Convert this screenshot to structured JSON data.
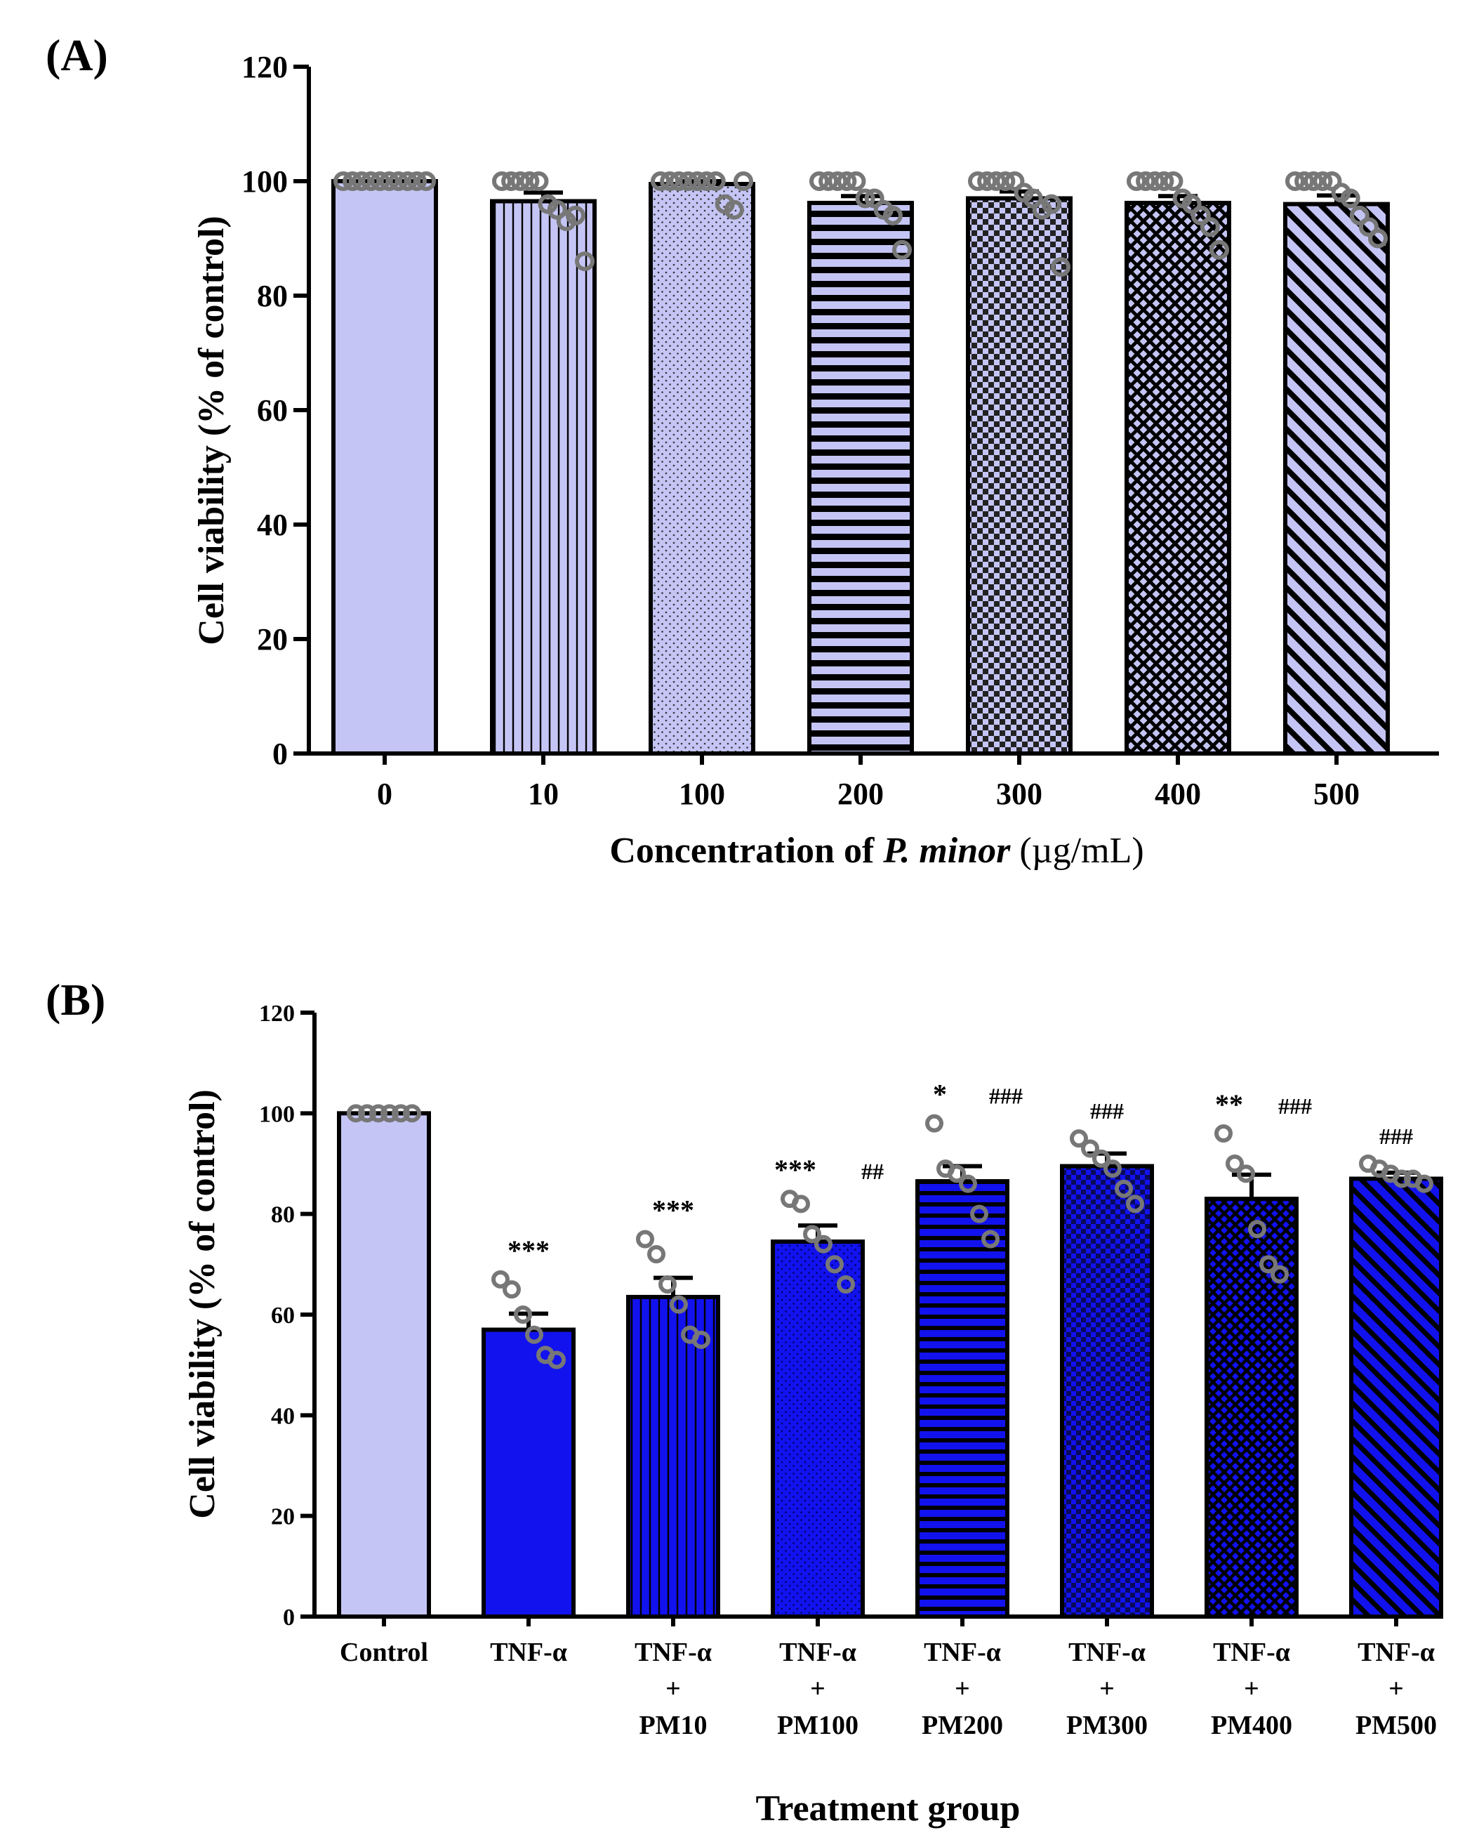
{
  "chart_data": [
    {
      "panel_label": "(A)",
      "type": "bar",
      "title": "",
      "xlabel_parts": [
        "Concentration of ",
        "P. minor",
        " (µg/mL)"
      ],
      "ylabel": "Cell viability (% of control)",
      "ylim": [
        0,
        120
      ],
      "yticks": [
        0,
        20,
        40,
        60,
        80,
        100,
        120
      ],
      "bar_fill": "#c5c5f5",
      "categories": [
        "0",
        "10",
        "100",
        "200",
        "300",
        "400",
        "500"
      ],
      "values": [
        100,
        96.5,
        99.5,
        96.2,
        97,
        96.2,
        96
      ],
      "errors": [
        0,
        1.5,
        0.5,
        1.2,
        1.2,
        1.2,
        1.5
      ],
      "patterns": [
        "solid",
        "vlines",
        "dots",
        "hlines",
        "checker",
        "crosshatch",
        "diag"
      ],
      "points": [
        [
          100,
          100,
          100,
          100,
          100,
          100,
          100,
          100,
          100,
          100
        ],
        [
          100,
          100,
          100,
          100,
          100,
          96,
          95,
          93,
          94,
          86
        ],
        [
          100,
          100,
          100,
          100,
          100,
          100,
          100,
          96,
          95,
          100
        ],
        [
          100,
          100,
          100,
          100,
          100,
          97,
          97,
          95,
          94,
          88
        ],
        [
          100,
          100,
          100,
          100,
          100,
          98,
          97,
          95,
          96,
          85
        ],
        [
          100,
          100,
          100,
          100,
          100,
          97,
          96,
          94,
          92,
          88
        ],
        [
          100,
          100,
          100,
          100,
          100,
          98,
          97,
          94,
          92,
          90
        ]
      ],
      "annotations": [
        "",
        "",
        "",
        "",
        "",
        "",
        ""
      ],
      "hash_annotations": [
        "",
        "",
        "",
        "",
        "",
        "",
        ""
      ]
    },
    {
      "panel_label": "(B)",
      "type": "bar",
      "title": "",
      "xlabel_parts": [
        "Treatment group"
      ],
      "ylabel": "Cell viability (% of control)",
      "ylim": [
        0,
        120
      ],
      "yticks": [
        0,
        20,
        40,
        60,
        80,
        100,
        120
      ],
      "control_fill": "#c5c5f5",
      "bar_fill": "#1212ee",
      "categories": [
        [
          "Control"
        ],
        [
          "TNF-α"
        ],
        [
          "TNF-α",
          "+",
          "PM10"
        ],
        [
          "TNF-α",
          "+",
          "PM100"
        ],
        [
          "TNF-α",
          "+",
          "PM200"
        ],
        [
          "TNF-α",
          "+",
          "PM300"
        ],
        [
          "TNF-α",
          "+",
          "PM400"
        ],
        [
          "TNF-α",
          "+",
          "PM500"
        ]
      ],
      "values": [
        100,
        57,
        63.5,
        74.5,
        86.5,
        89.5,
        83,
        87
      ],
      "errors": [
        0,
        3.2,
        3.8,
        3.2,
        3,
        2.5,
        4.8,
        1.2
      ],
      "patterns": [
        "solid",
        "solid",
        "vlines",
        "dots",
        "hlines",
        "checker",
        "crosshatch",
        "diag"
      ],
      "points": [
        [
          100,
          100,
          100,
          100,
          100,
          100
        ],
        [
          67,
          65,
          60,
          56,
          52,
          51
        ],
        [
          75,
          72,
          66,
          62,
          56,
          55
        ],
        [
          83,
          82,
          76,
          74,
          70,
          66
        ],
        [
          98,
          89,
          88,
          86,
          80,
          75
        ],
        [
          95,
          93,
          91,
          89,
          85,
          82
        ],
        [
          96,
          90,
          88,
          77,
          70,
          68
        ],
        [
          90,
          89,
          88,
          87,
          87,
          86
        ]
      ],
      "annotations": [
        "",
        "***",
        "***",
        "***",
        "*",
        "",
        "**",
        ""
      ],
      "hash_annotations": [
        "",
        "",
        "",
        "##",
        "###",
        "###",
        "###",
        "###"
      ]
    }
  ]
}
